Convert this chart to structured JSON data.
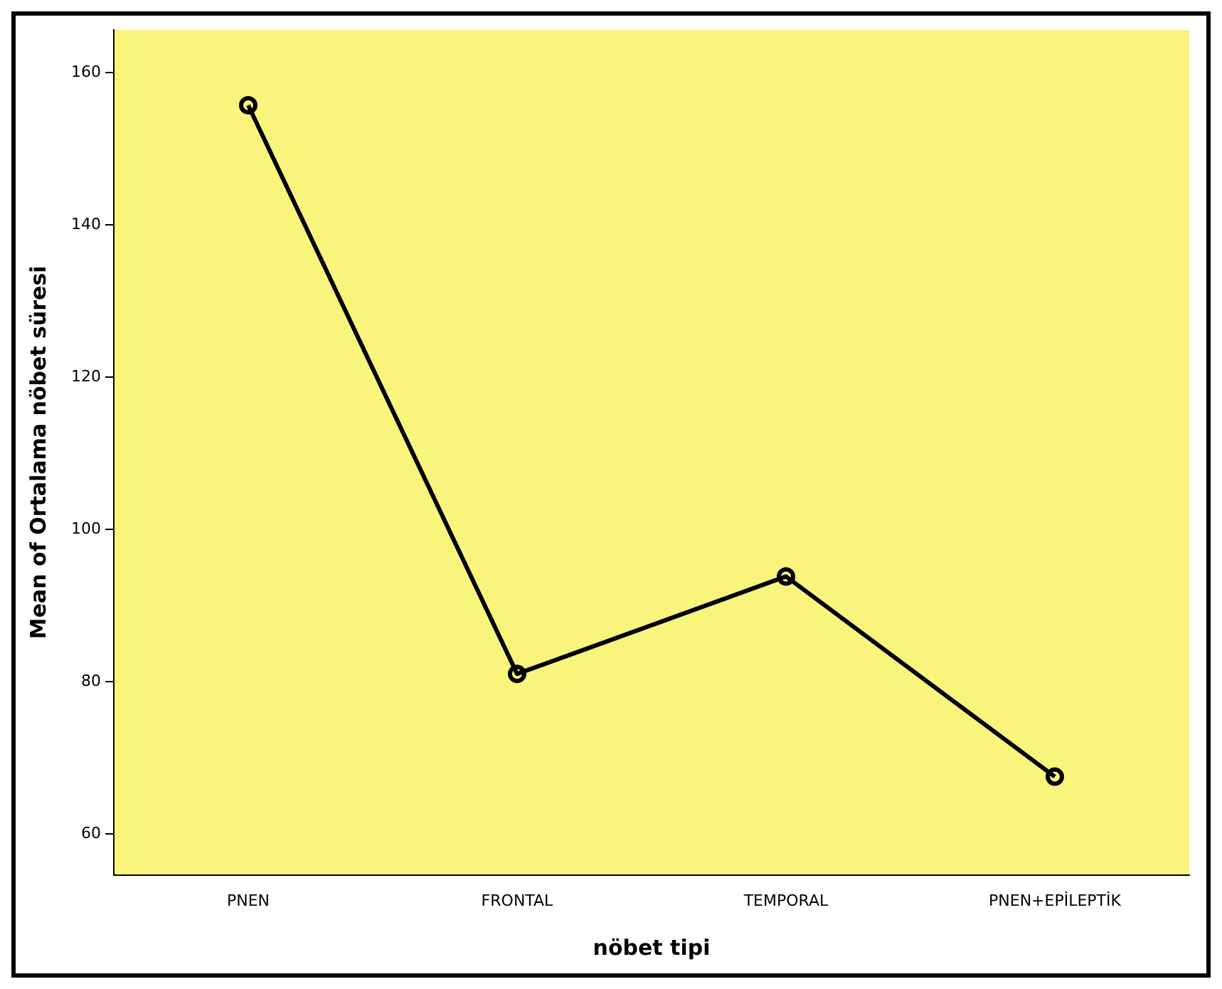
{
  "chart_data": {
    "type": "line",
    "xlabel": "nöbet tipi",
    "ylabel": "Mean of Ortalama nöbet süresi",
    "categories": [
      "PNEN",
      "FRONTAL",
      "TEMPORAL",
      "PNEN+EPİLEPTİK"
    ],
    "series": [
      {
        "color": "#000000",
        "values": [
          155.7,
          81,
          93.8,
          67.5
        ]
      }
    ],
    "ylim": [
      54.6,
      165.6
    ],
    "yticks": [
      60,
      80,
      100,
      120,
      140,
      160
    ],
    "grid": false,
    "legend": false,
    "marker": "circle",
    "line_style": "solid"
  }
}
